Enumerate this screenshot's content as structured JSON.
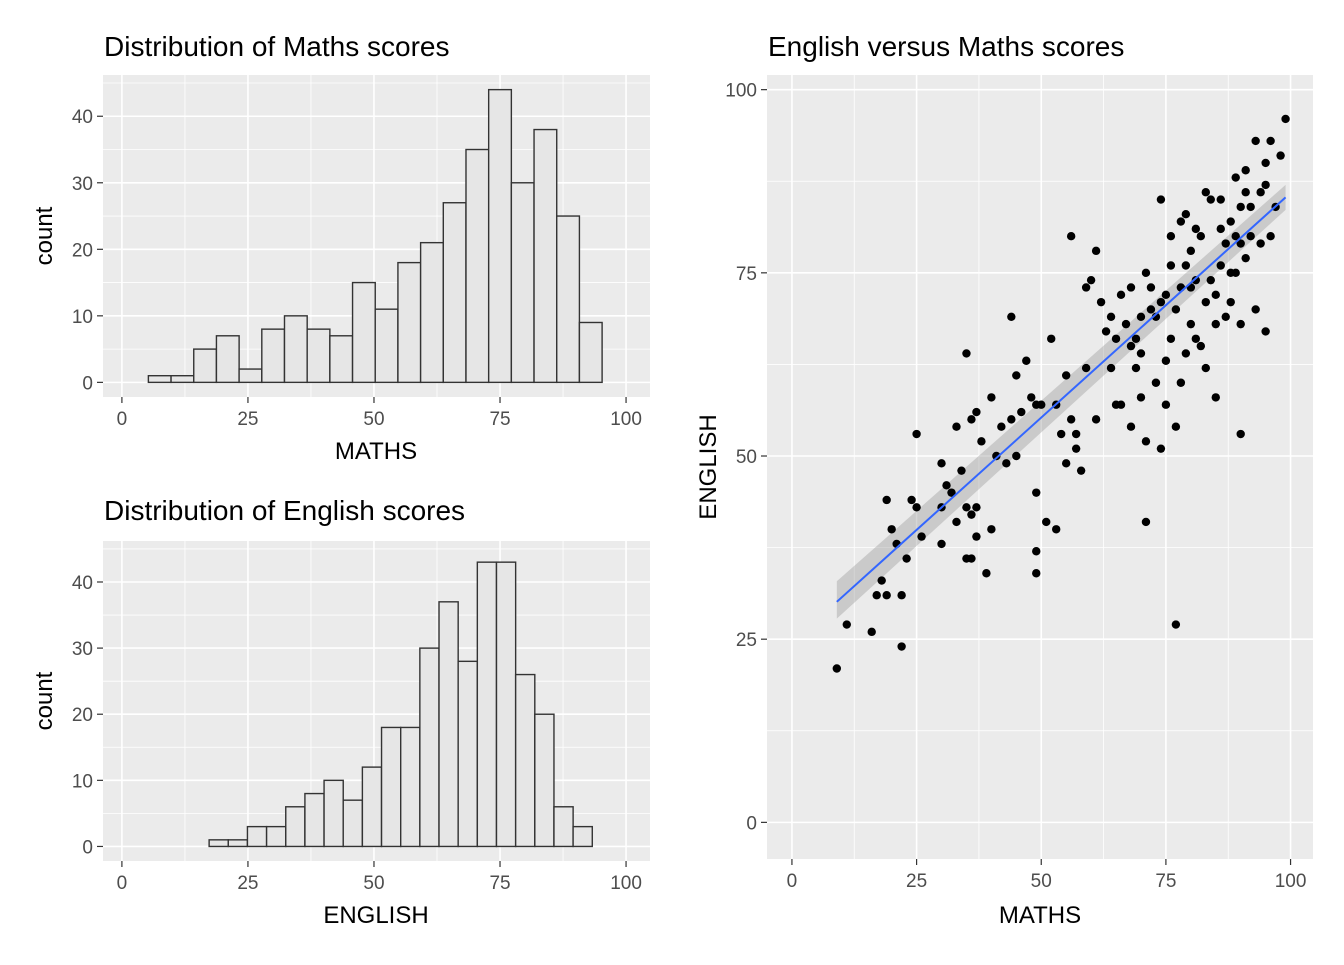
{
  "chart_data": [
    {
      "id": "maths-hist",
      "type": "bar",
      "title": "Distribution of Maths scores",
      "xlabel": "MATHS",
      "ylabel": "count",
      "xlim": [
        -3.75,
        104.75
      ],
      "ylim": [
        -2.2,
        46.2
      ],
      "x_ticks": [
        0,
        25,
        50,
        75,
        100
      ],
      "y_ticks": [
        0,
        10,
        20,
        30,
        40
      ],
      "grid": true,
      "bin_width": 4.5,
      "bin_centers": [
        7.5,
        12,
        16.5,
        21,
        25.5,
        30,
        34.5,
        39,
        43.5,
        48,
        52.5,
        57,
        61.5,
        66,
        70.5,
        75,
        79.5,
        84,
        88.5,
        93,
        97.5
      ],
      "values": [
        1,
        1,
        5,
        7,
        2,
        8,
        10,
        8,
        7,
        15,
        11,
        18,
        21,
        27,
        35,
        44,
        30,
        38,
        25,
        9,
        0
      ]
    },
    {
      "id": "english-hist",
      "type": "bar",
      "title": "Distribution of English scores",
      "xlabel": "ENGLISH",
      "ylabel": "count",
      "xlim": [
        -3.75,
        104.75
      ],
      "ylim": [
        -2.2,
        46.2
      ],
      "x_ticks": [
        0,
        25,
        50,
        75,
        100
      ],
      "y_ticks": [
        0,
        10,
        20,
        30,
        40
      ],
      "grid": true,
      "bin_width": 3.8,
      "bin_centers": [
        19.2,
        23,
        26.8,
        30.6,
        34.4,
        38.2,
        42,
        45.8,
        49.6,
        53.4,
        57.2,
        61,
        64.8,
        68.6,
        72.4,
        76.2,
        80,
        83.8,
        87.6,
        91.4,
        95.2
      ],
      "values": [
        1,
        1,
        3,
        3,
        6,
        8,
        10,
        7,
        12,
        18,
        18,
        30,
        37,
        28,
        43,
        43,
        26,
        20,
        6,
        3,
        0
      ]
    },
    {
      "id": "scatter",
      "type": "scatter",
      "title": "English versus Maths scores",
      "xlabel": "MATHS",
      "ylabel": "ENGLISH",
      "xlim": [
        -5,
        104.5
      ],
      "ylim": [
        -5,
        102
      ],
      "x_ticks": [
        0,
        25,
        50,
        75,
        100
      ],
      "y_ticks": [
        0,
        25,
        50,
        75,
        100
      ],
      "grid": true,
      "points": [
        [
          9,
          21
        ],
        [
          11,
          27
        ],
        [
          16,
          26
        ],
        [
          17,
          31
        ],
        [
          18,
          33
        ],
        [
          19,
          31
        ],
        [
          19,
          44
        ],
        [
          20,
          40
        ],
        [
          21,
          38
        ],
        [
          22,
          24
        ],
        [
          22,
          31
        ],
        [
          23,
          36
        ],
        [
          24,
          44
        ],
        [
          25,
          43
        ],
        [
          25,
          53
        ],
        [
          26,
          39
        ],
        [
          30,
          49
        ],
        [
          30,
          43
        ],
        [
          30,
          38
        ],
        [
          31,
          46
        ],
        [
          32,
          45
        ],
        [
          33,
          41
        ],
        [
          33,
          54
        ],
        [
          34,
          48
        ],
        [
          35,
          36
        ],
        [
          35,
          43
        ],
        [
          36,
          36
        ],
        [
          35,
          64
        ],
        [
          36,
          42
        ],
        [
          36,
          55
        ],
        [
          37,
          43
        ],
        [
          37,
          56
        ],
        [
          37,
          39
        ],
        [
          38,
          52
        ],
        [
          39,
          34
        ],
        [
          40,
          58
        ],
        [
          40,
          40
        ],
        [
          41,
          50
        ],
        [
          42,
          54
        ],
        [
          43,
          49
        ],
        [
          44,
          55
        ],
        [
          44,
          69
        ],
        [
          45,
          61
        ],
        [
          45,
          50
        ],
        [
          46,
          56
        ],
        [
          47,
          63
        ],
        [
          48,
          58
        ],
        [
          49,
          57
        ],
        [
          49,
          34
        ],
        [
          49,
          37
        ],
        [
          49,
          45
        ],
        [
          50,
          57
        ],
        [
          51,
          41
        ],
        [
          52,
          66
        ],
        [
          53,
          57
        ],
        [
          53,
          40
        ],
        [
          54,
          53
        ],
        [
          55,
          61
        ],
        [
          55,
          49
        ],
        [
          56,
          55
        ],
        [
          56,
          80
        ],
        [
          57,
          51
        ],
        [
          57,
          53
        ],
        [
          58,
          48
        ],
        [
          59,
          62
        ],
        [
          59,
          73
        ],
        [
          60,
          74
        ],
        [
          61,
          78
        ],
        [
          61,
          55
        ],
        [
          62,
          71
        ],
        [
          63,
          67
        ],
        [
          64,
          62
        ],
        [
          64,
          69
        ],
        [
          65,
          57
        ],
        [
          65,
          66
        ],
        [
          66,
          72
        ],
        [
          66,
          57
        ],
        [
          67,
          68
        ],
        [
          68,
          54
        ],
        [
          68,
          65
        ],
        [
          68,
          73
        ],
        [
          69,
          66
        ],
        [
          69,
          62
        ],
        [
          70,
          69
        ],
        [
          70,
          58
        ],
        [
          70,
          64
        ],
        [
          71,
          41
        ],
        [
          71,
          52
        ],
        [
          71,
          75
        ],
        [
          72,
          73
        ],
        [
          72,
          70
        ],
        [
          73,
          69
        ],
        [
          73,
          60
        ],
        [
          74,
          71
        ],
        [
          74,
          85
        ],
        [
          74,
          51
        ],
        [
          75,
          72
        ],
        [
          75,
          63
        ],
        [
          75,
          57
        ],
        [
          76,
          76
        ],
        [
          76,
          66
        ],
        [
          76,
          80
        ],
        [
          77,
          70
        ],
        [
          77,
          27
        ],
        [
          77,
          54
        ],
        [
          78,
          82
        ],
        [
          78,
          60
        ],
        [
          78,
          73
        ],
        [
          79,
          76
        ],
        [
          79,
          64
        ],
        [
          79,
          83
        ],
        [
          80,
          78
        ],
        [
          80,
          73
        ],
        [
          80,
          68
        ],
        [
          81,
          74
        ],
        [
          81,
          81
        ],
        [
          81,
          66
        ],
        [
          82,
          65
        ],
        [
          82,
          80
        ],
        [
          83,
          86
        ],
        [
          83,
          71
        ],
        [
          83,
          62
        ],
        [
          84,
          85
        ],
        [
          84,
          74
        ],
        [
          85,
          72
        ],
        [
          85,
          68
        ],
        [
          85,
          58
        ],
        [
          86,
          81
        ],
        [
          86,
          85
        ],
        [
          86,
          76
        ],
        [
          87,
          79
        ],
        [
          87,
          69
        ],
        [
          88,
          82
        ],
        [
          88,
          71
        ],
        [
          88,
          75
        ],
        [
          89,
          80
        ],
        [
          89,
          88
        ],
        [
          89,
          75
        ],
        [
          90,
          84
        ],
        [
          90,
          68
        ],
        [
          90,
          53
        ],
        [
          90,
          79
        ],
        [
          91,
          86
        ],
        [
          91,
          89
        ],
        [
          91,
          77
        ],
        [
          92,
          84
        ],
        [
          92,
          80
        ],
        [
          93,
          93
        ],
        [
          93,
          70
        ],
        [
          94,
          86
        ],
        [
          94,
          79
        ],
        [
          95,
          67
        ],
        [
          95,
          90
        ],
        [
          95,
          87
        ],
        [
          96,
          93
        ],
        [
          96,
          80
        ],
        [
          97,
          84
        ],
        [
          98,
          91
        ],
        [
          99,
          96
        ]
      ],
      "trend_line": {
        "x": [
          9,
          99
        ],
        "y": [
          30.1,
          85.3
        ],
        "color": "#3366ff"
      },
      "confidence_band": {
        "x": [
          9,
          99
        ],
        "lower": [
          27.8,
          83.6
        ],
        "upper": [
          32.9,
          87.0
        ]
      }
    }
  ]
}
